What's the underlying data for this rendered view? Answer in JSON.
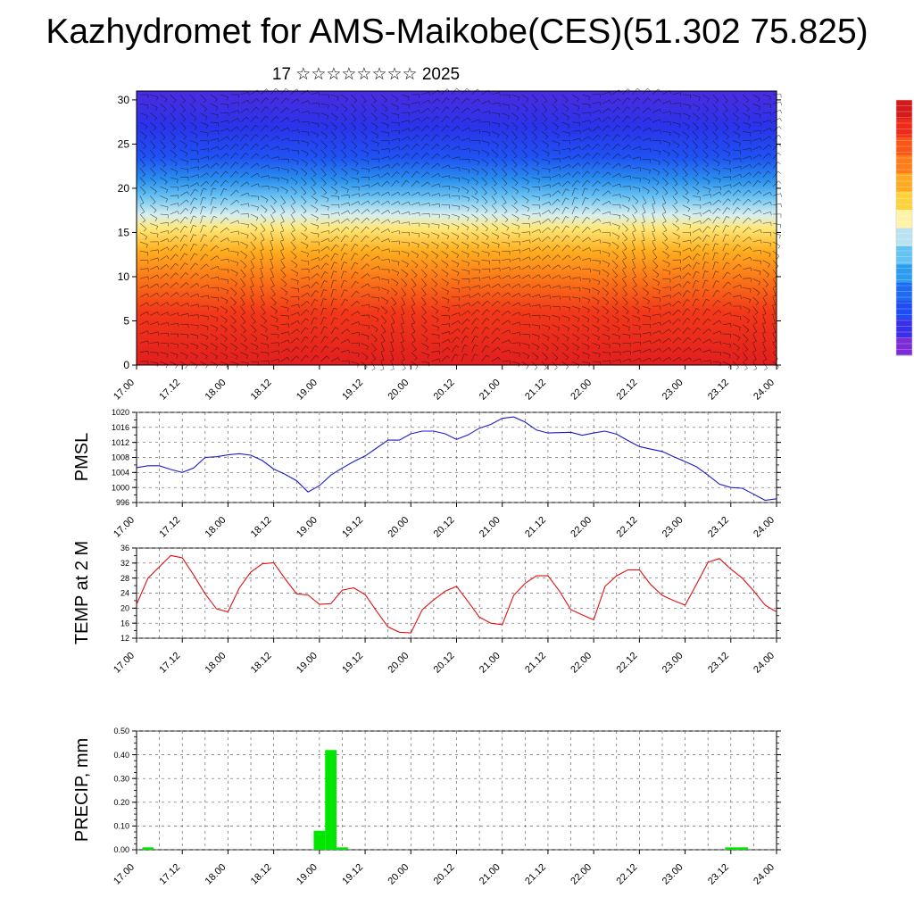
{
  "title": "Kazhydromet for AMS-Maikobe(CES)(51.302 75.825)",
  "subtitle": "17 ☆☆☆☆☆☆☆☆ 2025",
  "colorbar": {
    "colors": [
      "#7b2cd6",
      "#3a2fe8",
      "#1f4cf5",
      "#1c6bf2",
      "#2b9cf0",
      "#63c3f2",
      "#b9e2f3",
      "#fff3a8",
      "#ffd23a",
      "#ffaa20",
      "#ff7d18",
      "#fb5517",
      "#ee2a1a",
      "#d51a1c"
    ]
  },
  "chart_data": [
    {
      "type": "heatmap",
      "description_note": "",
      "x_ticks": [
        "17.00",
        "17.12",
        "18.00",
        "18.12",
        "19.00",
        "19.12",
        "20.00",
        "20.12",
        "21.00",
        "21.12",
        "22.00",
        "22.12",
        "23.00",
        "23.12",
        "24.00"
      ],
      "ylim": [
        0,
        31
      ],
      "y_ticks": [
        0,
        5,
        10,
        15,
        20,
        25,
        30
      ],
      "color_bands": [
        {
          "y": 0,
          "color": "#e11e1e"
        },
        {
          "y": 6,
          "color": "#f2381a"
        },
        {
          "y": 10,
          "color": "#fb7a18"
        },
        {
          "y": 13,
          "color": "#ffb020"
        },
        {
          "y": 15.5,
          "color": "#ffe87a"
        },
        {
          "y": 17,
          "color": "#d8eef0"
        },
        {
          "y": 19,
          "color": "#6cc4f2"
        },
        {
          "y": 21,
          "color": "#2a8fee"
        },
        {
          "y": 23.5,
          "color": "#1f52f3"
        },
        {
          "y": 27,
          "color": "#2a33ea"
        },
        {
          "y": 31,
          "color": "#4a2ce0"
        }
      ]
    },
    {
      "type": "line",
      "ylabel": "PMSL",
      "x_ticks": [
        "17.00",
        "17.12",
        "18.00",
        "18.12",
        "19.00",
        "19.12",
        "20.00",
        "20.12",
        "21.00",
        "21.12",
        "22.00",
        "22.12",
        "23.00",
        "23.12",
        "24.00"
      ],
      "ylim": [
        996,
        1020
      ],
      "y_ticks": [
        996,
        1000,
        1004,
        1008,
        1012,
        1016,
        1020
      ],
      "color": "#1a1acc",
      "x": [
        0,
        3,
        6,
        9,
        12,
        15,
        18,
        21,
        24,
        27,
        30,
        33,
        36,
        39,
        42,
        45,
        48,
        51,
        54,
        57,
        60,
        63,
        66,
        69,
        72,
        75,
        78,
        81,
        84,
        87,
        90,
        93,
        96,
        99,
        102,
        105,
        108,
        111,
        114,
        117,
        120,
        123,
        126,
        129,
        132,
        135,
        138,
        141,
        144,
        147,
        150,
        153,
        156,
        159,
        162,
        165,
        168
      ],
      "values": [
        1005.3,
        1005.8,
        1005.8,
        1004.8,
        1004.0,
        1005.2,
        1008.0,
        1008.2,
        1008.7,
        1009.0,
        1008.6,
        1007.2,
        1004.9,
        1003.5,
        1001.8,
        998.8,
        1000.5,
        1003.3,
        1005.2,
        1006.9,
        1008.4,
        1010.5,
        1012.6,
        1012.6,
        1014.3,
        1015.0,
        1015.0,
        1014.3,
        1012.8,
        1014.0,
        1015.8,
        1016.8,
        1018.4,
        1018.8,
        1017.4,
        1015.3,
        1014.5,
        1014.6,
        1014.7,
        1013.9,
        1014.5,
        1015.0,
        1014.2,
        1012.5,
        1010.9,
        1010.2,
        1009.6,
        1008.2,
        1006.9,
        1005.5,
        1003.3,
        1000.9,
        1000.0,
        999.8,
        998.2,
        996.6,
        997.0
      ]
    },
    {
      "type": "line",
      "ylabel": "TEMP at 2 M",
      "x_ticks": [
        "17.00",
        "17.12",
        "18.00",
        "18.12",
        "19.00",
        "19.12",
        "20.00",
        "20.12",
        "21.00",
        "21.12",
        "22.00",
        "22.12",
        "23.00",
        "23.12",
        "24.00"
      ],
      "ylim": [
        12,
        36
      ],
      "y_ticks": [
        12,
        16,
        20,
        24,
        28,
        32,
        36
      ],
      "color": "#e01010",
      "x": [
        0,
        3,
        6,
        9,
        12,
        15,
        18,
        21,
        24,
        27,
        30,
        33,
        36,
        39,
        42,
        45,
        48,
        51,
        54,
        57,
        60,
        63,
        66,
        69,
        72,
        75,
        78,
        81,
        84,
        87,
        90,
        93,
        96,
        99,
        102,
        105,
        108,
        111,
        114,
        117,
        120,
        123,
        126,
        129,
        132,
        135,
        138,
        141,
        144,
        147,
        150,
        153,
        156,
        159,
        162,
        165,
        168
      ],
      "values": [
        21.0,
        28.0,
        31.0,
        34.0,
        33.4,
        28.8,
        23.8,
        19.8,
        19.0,
        25.4,
        29.6,
        31.8,
        32.1,
        27.8,
        23.8,
        23.5,
        21.0,
        21.2,
        24.8,
        25.4,
        23.6,
        19.2,
        15.0,
        13.6,
        13.4,
        19.6,
        22.2,
        24.5,
        25.8,
        21.8,
        17.6,
        16.0,
        15.6,
        23.4,
        26.6,
        28.6,
        28.6,
        24.6,
        19.6,
        18.2,
        16.9,
        25.8,
        28.6,
        30.2,
        30.2,
        26.2,
        23.4,
        22.0,
        20.8,
        26.4,
        32.2,
        33.2,
        30.4,
        28.0,
        24.6,
        20.8,
        19.0
      ]
    },
    {
      "type": "bar",
      "ylabel": "PRECIP, mm",
      "x_ticks": [
        "17.00",
        "17.12",
        "18.00",
        "18.12",
        "19.00",
        "19.12",
        "20.00",
        "20.12",
        "21.00",
        "21.12",
        "22.00",
        "22.12",
        "23.00",
        "23.12",
        "24.00"
      ],
      "ylim": [
        0,
        0.5
      ],
      "y_ticks": [
        "0.00",
        "0.10",
        "0.20",
        "0.30",
        "0.40",
        "0.50"
      ],
      "color": "#00e600",
      "bar_width_hours": 3,
      "x": [
        3,
        48,
        51,
        54,
        156,
        159
      ],
      "values": [
        0.01,
        0.08,
        0.42,
        0.01,
        0.01,
        0.01
      ]
    }
  ]
}
